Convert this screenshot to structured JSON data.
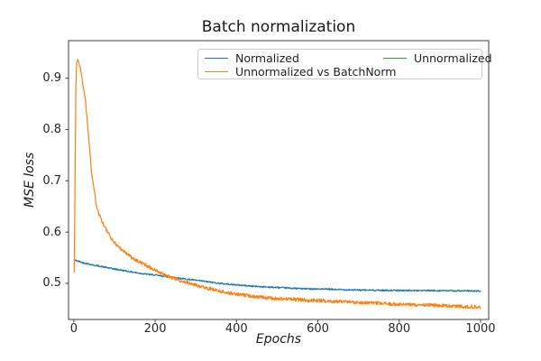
{
  "title": "Batch normalization",
  "axes": {
    "xlabel": "Epochs",
    "ylabel": "MSE loss",
    "xticks": [
      0,
      200,
      400,
      600,
      800,
      1000
    ],
    "yticks": [
      0.5,
      0.6,
      0.7,
      0.8,
      0.9
    ]
  },
  "legend": {
    "entries": [
      {
        "label": "Normalized",
        "color": "#1f77b4"
      },
      {
        "label": "Unnormalized vs BatchNorm",
        "color": "#ff7f0e"
      },
      {
        "label": "Unnormalized",
        "color": "#2ca02c"
      }
    ]
  },
  "chart_data": {
    "type": "line",
    "title": "Batch normalization",
    "xlabel": "Epochs",
    "ylabel": "MSE loss",
    "xlim": [
      -13,
      1020
    ],
    "ylim": [
      0.4296,
      0.9734
    ],
    "grid": false,
    "legend_position": "upper right",
    "legend_columns": 2,
    "series": [
      {
        "name": "Normalized",
        "color": "#1f77b4",
        "visible": true,
        "keypoints": [
          [
            0,
            0.546
          ],
          [
            20,
            0.541
          ],
          [
            40,
            0.537
          ],
          [
            60,
            0.534
          ],
          [
            80,
            0.531
          ],
          [
            100,
            0.528
          ],
          [
            130,
            0.524
          ],
          [
            160,
            0.52
          ],
          [
            200,
            0.516
          ],
          [
            240,
            0.512
          ],
          [
            280,
            0.508
          ],
          [
            320,
            0.504
          ],
          [
            360,
            0.5
          ],
          [
            400,
            0.497
          ],
          [
            450,
            0.494
          ],
          [
            500,
            0.492
          ],
          [
            550,
            0.49
          ],
          [
            600,
            0.489
          ],
          [
            650,
            0.488
          ],
          [
            700,
            0.487
          ],
          [
            750,
            0.4866
          ],
          [
            800,
            0.4862
          ],
          [
            850,
            0.486
          ],
          [
            900,
            0.4858
          ],
          [
            950,
            0.4854
          ],
          [
            1000,
            0.485
          ]
        ]
      },
      {
        "name": "Unnormalized vs BatchNorm",
        "color": "#ff7f0e",
        "visible": true,
        "keypoints": [
          [
            0,
            0.521
          ],
          [
            1,
            0.523
          ],
          [
            3,
            0.7
          ],
          [
            5,
            0.88
          ],
          [
            7,
            0.932
          ],
          [
            10,
            0.936
          ],
          [
            13,
            0.928
          ],
          [
            16,
            0.921
          ],
          [
            20,
            0.9
          ],
          [
            26,
            0.872
          ],
          [
            30,
            0.846
          ],
          [
            36,
            0.788
          ],
          [
            40,
            0.754
          ],
          [
            44,
            0.714
          ],
          [
            50,
            0.682
          ],
          [
            55,
            0.655
          ],
          [
            62,
            0.636
          ],
          [
            74,
            0.613
          ],
          [
            85,
            0.597
          ],
          [
            96,
            0.583
          ],
          [
            107,
            0.574
          ],
          [
            118,
            0.566
          ],
          [
            133,
            0.556
          ],
          [
            148,
            0.548
          ],
          [
            163,
            0.541
          ],
          [
            177,
            0.536
          ],
          [
            190,
            0.53
          ],
          [
            200,
            0.526
          ],
          [
            215,
            0.519
          ],
          [
            230,
            0.514
          ],
          [
            245,
            0.51
          ],
          [
            260,
            0.506
          ],
          [
            280,
            0.501
          ],
          [
            300,
            0.497
          ],
          [
            325,
            0.491
          ],
          [
            350,
            0.487
          ],
          [
            375,
            0.482
          ],
          [
            400,
            0.479
          ],
          [
            430,
            0.476
          ],
          [
            460,
            0.473
          ],
          [
            500,
            0.47
          ],
          [
            540,
            0.469
          ],
          [
            580,
            0.467
          ],
          [
            620,
            0.466
          ],
          [
            660,
            0.464
          ],
          [
            700,
            0.463
          ],
          [
            750,
            0.461
          ],
          [
            800,
            0.459
          ],
          [
            850,
            0.458
          ],
          [
            900,
            0.457
          ],
          [
            950,
            0.455
          ],
          [
            1000,
            0.454
          ]
        ]
      },
      {
        "name": "Unnormalized",
        "color": "#2ca02c",
        "visible": false,
        "keypoints": []
      }
    ]
  }
}
